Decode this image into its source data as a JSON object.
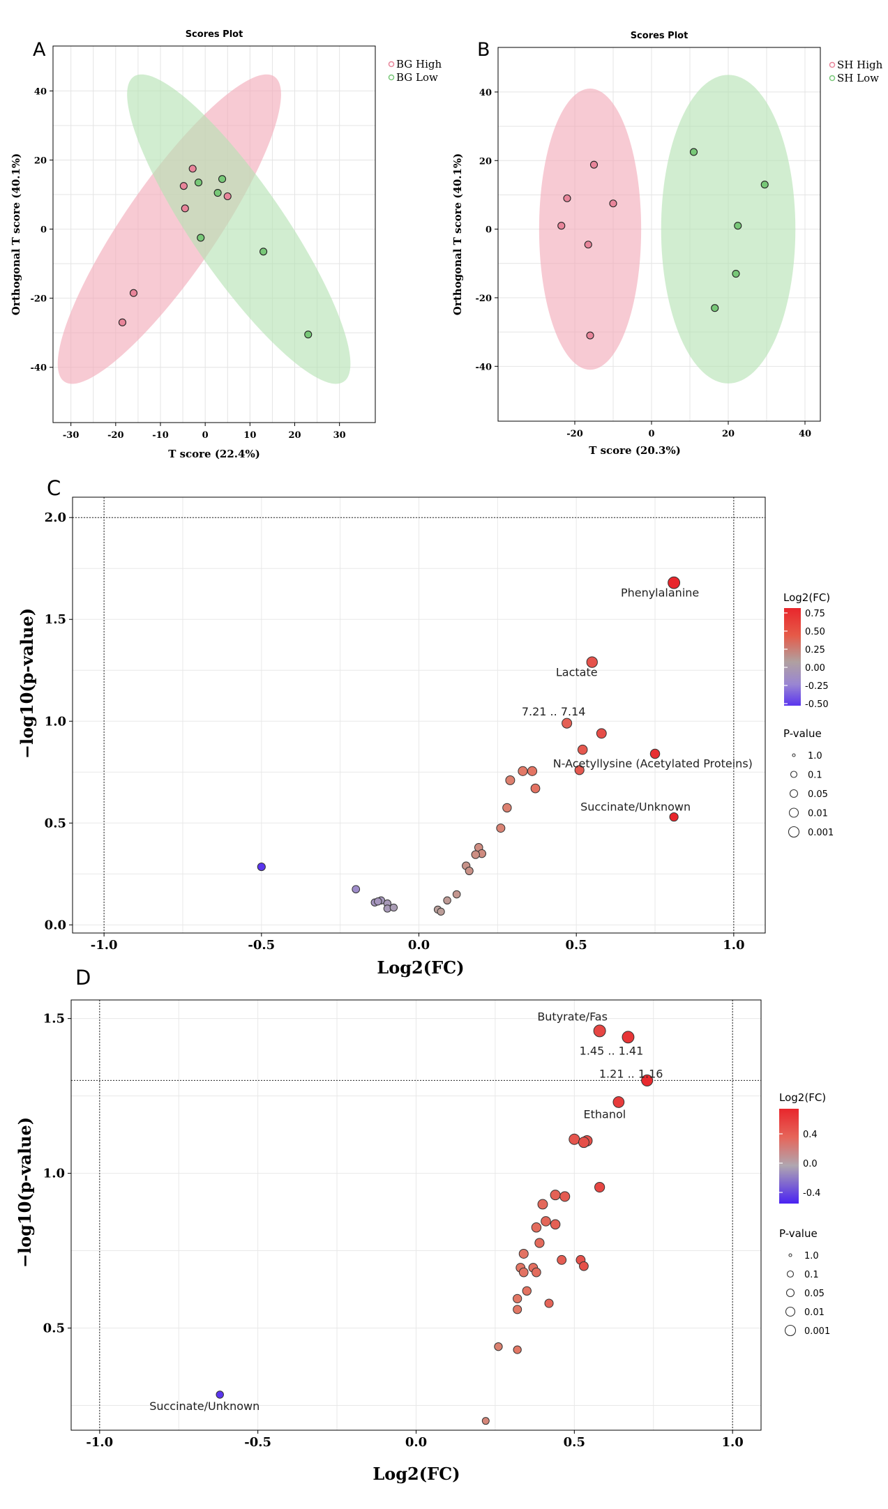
{
  "chart_data": [
    {
      "panel": "A",
      "type": "scatter",
      "title": "Scores Plot",
      "xlabel": "T score (22.4%)",
      "ylabel": "Orthogonal T score (40.1%)",
      "xlim": [
        -34,
        38
      ],
      "ylim": [
        -56,
        53
      ],
      "xticks": [
        -30,
        -20,
        -10,
        0,
        10,
        20,
        30
      ],
      "yticks": [
        -40,
        -20,
        0,
        20,
        40
      ],
      "legend": "top-right",
      "series": [
        {
          "name": "BG High",
          "color": "#e8859a",
          "fill": "#f2aab8",
          "points": [
            [
              -2.8,
              17.5
            ],
            [
              -4.8,
              12.5
            ],
            [
              -4.5,
              6
            ],
            [
              5,
              9.5
            ],
            [
              -16,
              -18.5
            ],
            [
              -18.5,
              -27
            ]
          ],
          "ellipse": {
            "center": [
              -8,
              0
            ],
            "rx": 50,
            "ry": 11,
            "angle": 62
          }
        },
        {
          "name": "BG Low",
          "color": "#78c878",
          "fill": "#b5e2b3",
          "points": [
            [
              -1.5,
              13.5
            ],
            [
              3.8,
              14.5
            ],
            [
              2.8,
              10.5
            ],
            [
              -1,
              -2.5
            ],
            [
              13,
              -6.5
            ],
            [
              23,
              -30.5
            ]
          ],
          "ellipse": {
            "center": [
              7.5,
              0
            ],
            "rx": 50,
            "ry": 11,
            "angle": -62
          }
        }
      ]
    },
    {
      "panel": "B",
      "type": "scatter",
      "title": "Scores Plot",
      "xlabel": "T score (20.3%)",
      "ylabel": "Orthogonal T score (40.1%)",
      "xlim": [
        -40,
        44
      ],
      "ylim": [
        -56,
        53
      ],
      "xticks": [
        -20,
        0,
        20,
        40
      ],
      "yticks": [
        -40,
        -20,
        0,
        20,
        40
      ],
      "legend": "top-right",
      "series": [
        {
          "name": "SH High",
          "color": "#e8859a",
          "fill": "#f2aab8",
          "points": [
            [
              -15,
              18.8
            ],
            [
              -22,
              9
            ],
            [
              -10,
              7.5
            ],
            [
              -23.5,
              1
            ],
            [
              -16.5,
              -4.5
            ],
            [
              -16,
              -31
            ]
          ],
          "ellipse": {
            "center": [
              -16,
              0
            ],
            "rx": 13.3,
            "ry": 41
          }
        },
        {
          "name": "SH Low",
          "color": "#78c878",
          "fill": "#b5e2b3",
          "points": [
            [
              11,
              22.5
            ],
            [
              29.5,
              13
            ],
            [
              22.5,
              1
            ],
            [
              22,
              -13
            ],
            [
              16.5,
              -23
            ]
          ],
          "ellipse": {
            "center": [
              20,
              0
            ],
            "rx": 17.5,
            "ry": 45
          }
        }
      ]
    },
    {
      "panel": "C",
      "type": "scatter",
      "xlabel": "Log2(FC)",
      "ylabel": "−log10(p-value)",
      "xlim": [
        -1.1,
        1.1
      ],
      "ylim": [
        -0.04,
        2.1
      ],
      "xticks": [
        -1.0,
        -0.5,
        0.0,
        0.5,
        1.0
      ],
      "yticks": [
        0.0,
        0.5,
        1.0,
        1.5,
        2.0
      ],
      "threshold_lines": {
        "x": [
          -1,
          1
        ],
        "y": [
          2.0
        ]
      },
      "color_legend": {
        "title": "Log2(FC)",
        "ticks": [
          "0.75",
          "0.50",
          "0.25",
          "0.00",
          "-0.25",
          "-0.50"
        ]
      },
      "size_legend": {
        "title": "P-value",
        "labels": [
          "1.0",
          "0.1",
          "0.05",
          "0.01",
          "0.001"
        ]
      },
      "points": [
        [
          0.81,
          1.68
        ],
        [
          0.55,
          1.29
        ],
        [
          0.47,
          0.99
        ],
        [
          0.58,
          0.94
        ],
        [
          0.52,
          0.86
        ],
        [
          0.75,
          0.84
        ],
        [
          0.51,
          0.76
        ],
        [
          0.33,
          0.755
        ],
        [
          0.36,
          0.755
        ],
        [
          0.29,
          0.71
        ],
        [
          0.37,
          0.67
        ],
        [
          0.81,
          0.53
        ],
        [
          0.28,
          0.575
        ],
        [
          0.26,
          0.475
        ],
        [
          0.19,
          0.38
        ],
        [
          0.2,
          0.35
        ],
        [
          0.18,
          0.345
        ],
        [
          0.15,
          0.29
        ],
        [
          0.16,
          0.265
        ],
        [
          0.12,
          0.15
        ],
        [
          0.09,
          0.12
        ],
        [
          0.06,
          0.075
        ],
        [
          0.07,
          0.065
        ],
        [
          -0.2,
          0.175
        ],
        [
          -0.14,
          0.11
        ],
        [
          -0.12,
          0.12
        ],
        [
          -0.13,
          0.115
        ],
        [
          -0.1,
          0.105
        ],
        [
          -0.1,
          0.08
        ],
        [
          -0.08,
          0.085
        ],
        [
          -0.5,
          0.285
        ]
      ],
      "labels": [
        {
          "text": "Phenylalanine",
          "x": 0.81,
          "y": 1.68
        },
        {
          "text": "Lactate",
          "x": 0.55,
          "y": 1.29
        },
        {
          "text": "7.21 .. 7.14",
          "x": 0.47,
          "y": 0.99
        },
        {
          "text": "N-Acetyllysine (Acetylated Proteins)",
          "x": 0.51,
          "y": 0.76
        },
        {
          "text": "Succinate/Unknown",
          "x": 0.81,
          "y": 0.53
        }
      ]
    },
    {
      "panel": "D",
      "type": "scatter",
      "xlabel": "Log2(FC)",
      "ylabel": "−log10(p-value)",
      "xlim": [
        -1.09,
        1.09
      ],
      "ylim": [
        0.17,
        1.56
      ],
      "xticks": [
        -1.0,
        -0.5,
        0.0,
        0.5,
        1.0
      ],
      "yticks": [
        0.5,
        1.0,
        1.5
      ],
      "threshold_lines": {
        "x": [
          -1,
          1
        ],
        "y": [
          1.3
        ]
      },
      "color_legend": {
        "title": "Log2(FC)",
        "ticks": [
          "0.4",
          "0.0",
          "-0.4"
        ]
      },
      "size_legend": {
        "title": "P-value",
        "labels": [
          "1.0",
          "0.1",
          "0.05",
          "0.01",
          "0.001"
        ]
      },
      "points": [
        [
          0.58,
          1.46
        ],
        [
          0.67,
          1.44
        ],
        [
          0.73,
          1.3
        ],
        [
          0.64,
          1.23
        ],
        [
          0.5,
          1.11
        ],
        [
          0.54,
          1.105
        ],
        [
          0.53,
          1.1
        ],
        [
          0.58,
          0.955
        ],
        [
          0.44,
          0.93
        ],
        [
          0.47,
          0.925
        ],
        [
          0.4,
          0.9
        ],
        [
          0.41,
          0.845
        ],
        [
          0.44,
          0.835
        ],
        [
          0.38,
          0.825
        ],
        [
          0.39,
          0.775
        ],
        [
          0.34,
          0.74
        ],
        [
          0.33,
          0.695
        ],
        [
          0.37,
          0.695
        ],
        [
          0.38,
          0.68
        ],
        [
          0.34,
          0.68
        ],
        [
          0.46,
          0.72
        ],
        [
          0.52,
          0.72
        ],
        [
          0.53,
          0.7
        ],
        [
          0.35,
          0.62
        ],
        [
          0.32,
          0.595
        ],
        [
          0.42,
          0.58
        ],
        [
          0.32,
          0.56
        ],
        [
          0.26,
          0.44
        ],
        [
          0.32,
          0.43
        ],
        [
          0.22,
          0.2
        ],
        [
          -0.62,
          0.285
        ]
      ],
      "labels": [
        {
          "text": "Butyrate/Fas",
          "x": 0.58,
          "y": 1.46
        },
        {
          "text": "1.45 .. 1.41",
          "x": 0.67,
          "y": 1.44
        },
        {
          "text": "1.21 .. 1.16",
          "x": 0.73,
          "y": 1.3
        },
        {
          "text": "Ethanol",
          "x": 0.64,
          "y": 1.23
        },
        {
          "text": "Succinate/Unknown",
          "x": -0.62,
          "y": 0.285
        }
      ]
    }
  ]
}
